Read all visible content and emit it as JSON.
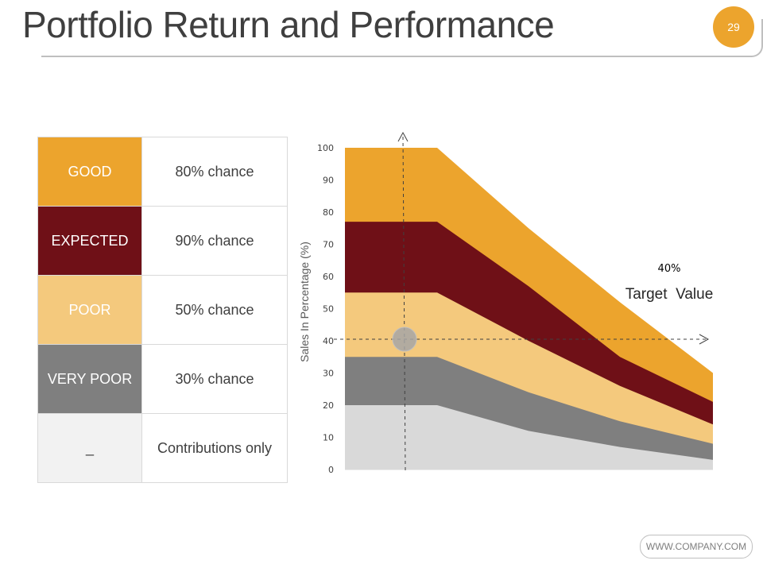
{
  "header": {
    "title": "Portfolio Return and Performance",
    "page_number": "29"
  },
  "legend_table": {
    "rows": [
      {
        "label": "GOOD",
        "chance": "80% chance",
        "color": "#eca42d",
        "text_color": "#ffffff"
      },
      {
        "label": "EXPECTED",
        "chance": "90% chance",
        "color": "#6f1017",
        "text_color": "#ffffff"
      },
      {
        "label": "POOR",
        "chance": "50% chance",
        "color": "#f4c97d",
        "text_color": "#ffffff"
      },
      {
        "label": "VERY POOR",
        "chance": "30% chance",
        "color": "#7f7f7f",
        "text_color": "#ffffff"
      },
      {
        "label": "_",
        "chance": "Contributions only",
        "color": "#f2f2f2",
        "text_color": "#3f3f3f"
      }
    ]
  },
  "chart_data": {
    "type": "area",
    "ylabel": "Sales In Percentage (%)",
    "ylim": [
      0,
      100
    ],
    "yticks": [
      0,
      10,
      20,
      30,
      40,
      50,
      60,
      70,
      80,
      90,
      100
    ],
    "x": [
      0,
      1,
      2,
      3,
      4
    ],
    "series": [
      {
        "name": "GOOD",
        "color": "#eca42d",
        "upper": [
          100,
          100,
          75,
          52,
          30
        ]
      },
      {
        "name": "EXPECTED",
        "color": "#6f1017",
        "upper": [
          77,
          77,
          57,
          35,
          21
        ]
      },
      {
        "name": "POOR",
        "color": "#f4c97d",
        "upper": [
          55,
          55,
          40,
          26,
          14
        ]
      },
      {
        "name": "VERY POOR",
        "color": "#7f7f7f",
        "upper": [
          35,
          35,
          24,
          15,
          8
        ]
      },
      {
        "name": "Contributions only",
        "color": "#d9d9d9",
        "upper": [
          20,
          20,
          12,
          7,
          3
        ]
      }
    ],
    "annotation": {
      "value_label": "40%",
      "label": "Target  Value",
      "target_y": 40
    }
  },
  "footer": {
    "website": "WWW.COMPANY.COM"
  }
}
